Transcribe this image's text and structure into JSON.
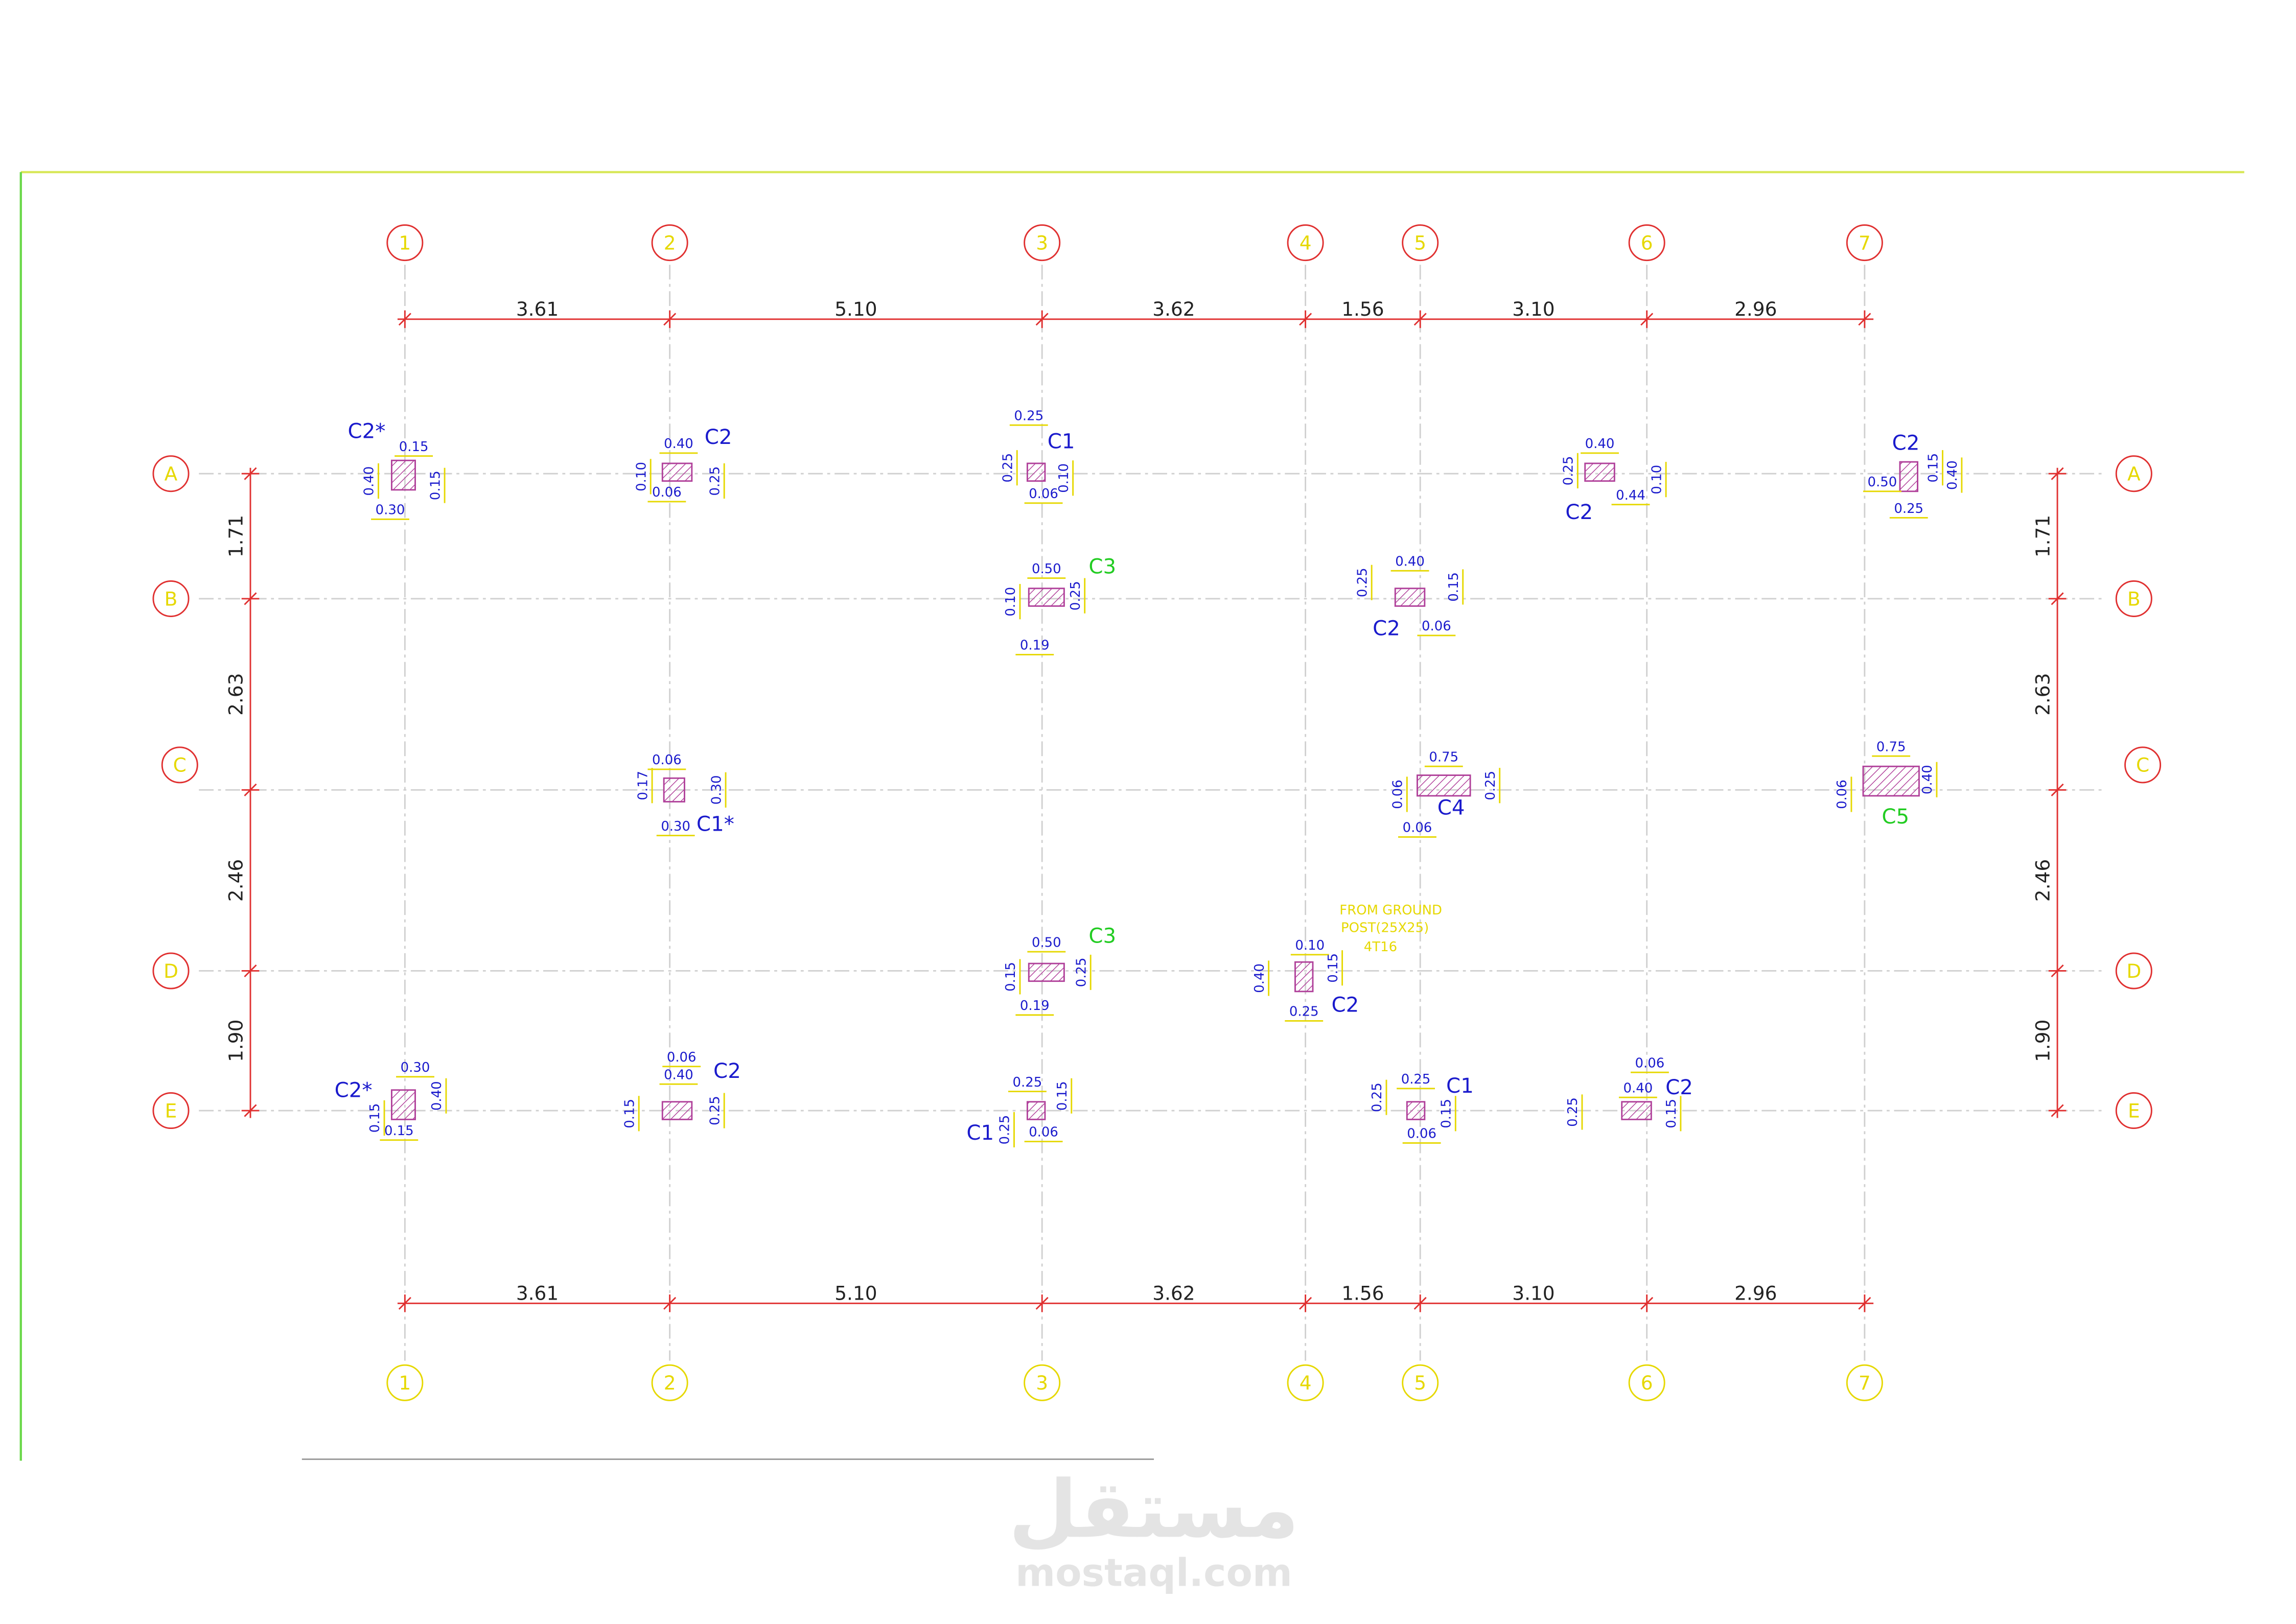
{
  "grid_columns": [
    "1",
    "2",
    "3",
    "4",
    "5",
    "6",
    "7"
  ],
  "grid_rows": [
    "A",
    "B",
    "C",
    "D",
    "E"
  ],
  "horizontal_dimensions": [
    "3.61",
    "5.10",
    "3.62",
    "1.56",
    "3.10",
    "2.96"
  ],
  "vertical_dimensions": [
    "1.71",
    "2.63",
    "2.46",
    "1.90"
  ],
  "columns": [
    {
      "label": "C2*",
      "dims": [
        "0.15",
        "0.40",
        "0.15",
        "0.30"
      ]
    },
    {
      "label": "C2",
      "dims": [
        "0.40",
        "0.10",
        "0.25",
        "0.06"
      ]
    },
    {
      "label": "C1",
      "dims": [
        "0.25",
        "0.25",
        "0.10",
        "0.06"
      ]
    },
    {
      "label": "C2",
      "dims": [
        "0.40",
        "0.25",
        "0.10",
        "0.44"
      ]
    },
    {
      "label": "C2",
      "dims": [
        "0.50",
        "0.15",
        "0.40",
        "0.25"
      ]
    },
    {
      "label": "C3",
      "dims": [
        "0.50",
        "0.10",
        "0.25",
        "0.19"
      ]
    },
    {
      "label": "C2",
      "dims": [
        "0.40",
        "0.25",
        "0.15",
        "0.06"
      ]
    },
    {
      "label": "C1*",
      "dims": [
        "0.06",
        "0.17",
        "0.30",
        "0.30"
      ]
    },
    {
      "label": "C4",
      "dims": [
        "0.75",
        "0.06",
        "0.25",
        "0.06"
      ]
    },
    {
      "label": "C5",
      "dims": [
        "0.75",
        "0.06",
        "0.40"
      ]
    },
    {
      "label": "C3",
      "dims": [
        "0.50",
        "0.15",
        "0.25",
        "0.19"
      ]
    },
    {
      "label": "C2",
      "dims": [
        "0.10",
        "0.40",
        "0.15",
        "0.25"
      ]
    },
    {
      "label": "C2*",
      "dims": [
        "0.30",
        "0.15",
        "0.40",
        "0.15"
      ]
    },
    {
      "label": "C2",
      "dims": [
        "0.06",
        "0.40",
        "0.15",
        "0.25"
      ]
    },
    {
      "label": "C1",
      "dims": [
        "0.25",
        "0.15",
        "0.25",
        "0.06"
      ]
    },
    {
      "label": "C1",
      "dims": [
        "0.25",
        "0.25",
        "0.15",
        "0.06"
      ]
    },
    {
      "label": "C2",
      "dims": [
        "0.06",
        "0.40",
        "0.25",
        "0.15"
      ]
    }
  ],
  "note": [
    "FROM GROUND",
    "POST(25X25)",
    "4T16"
  ],
  "watermark": {
    "arabic": "مستقل",
    "latin": "mostaql.com"
  }
}
